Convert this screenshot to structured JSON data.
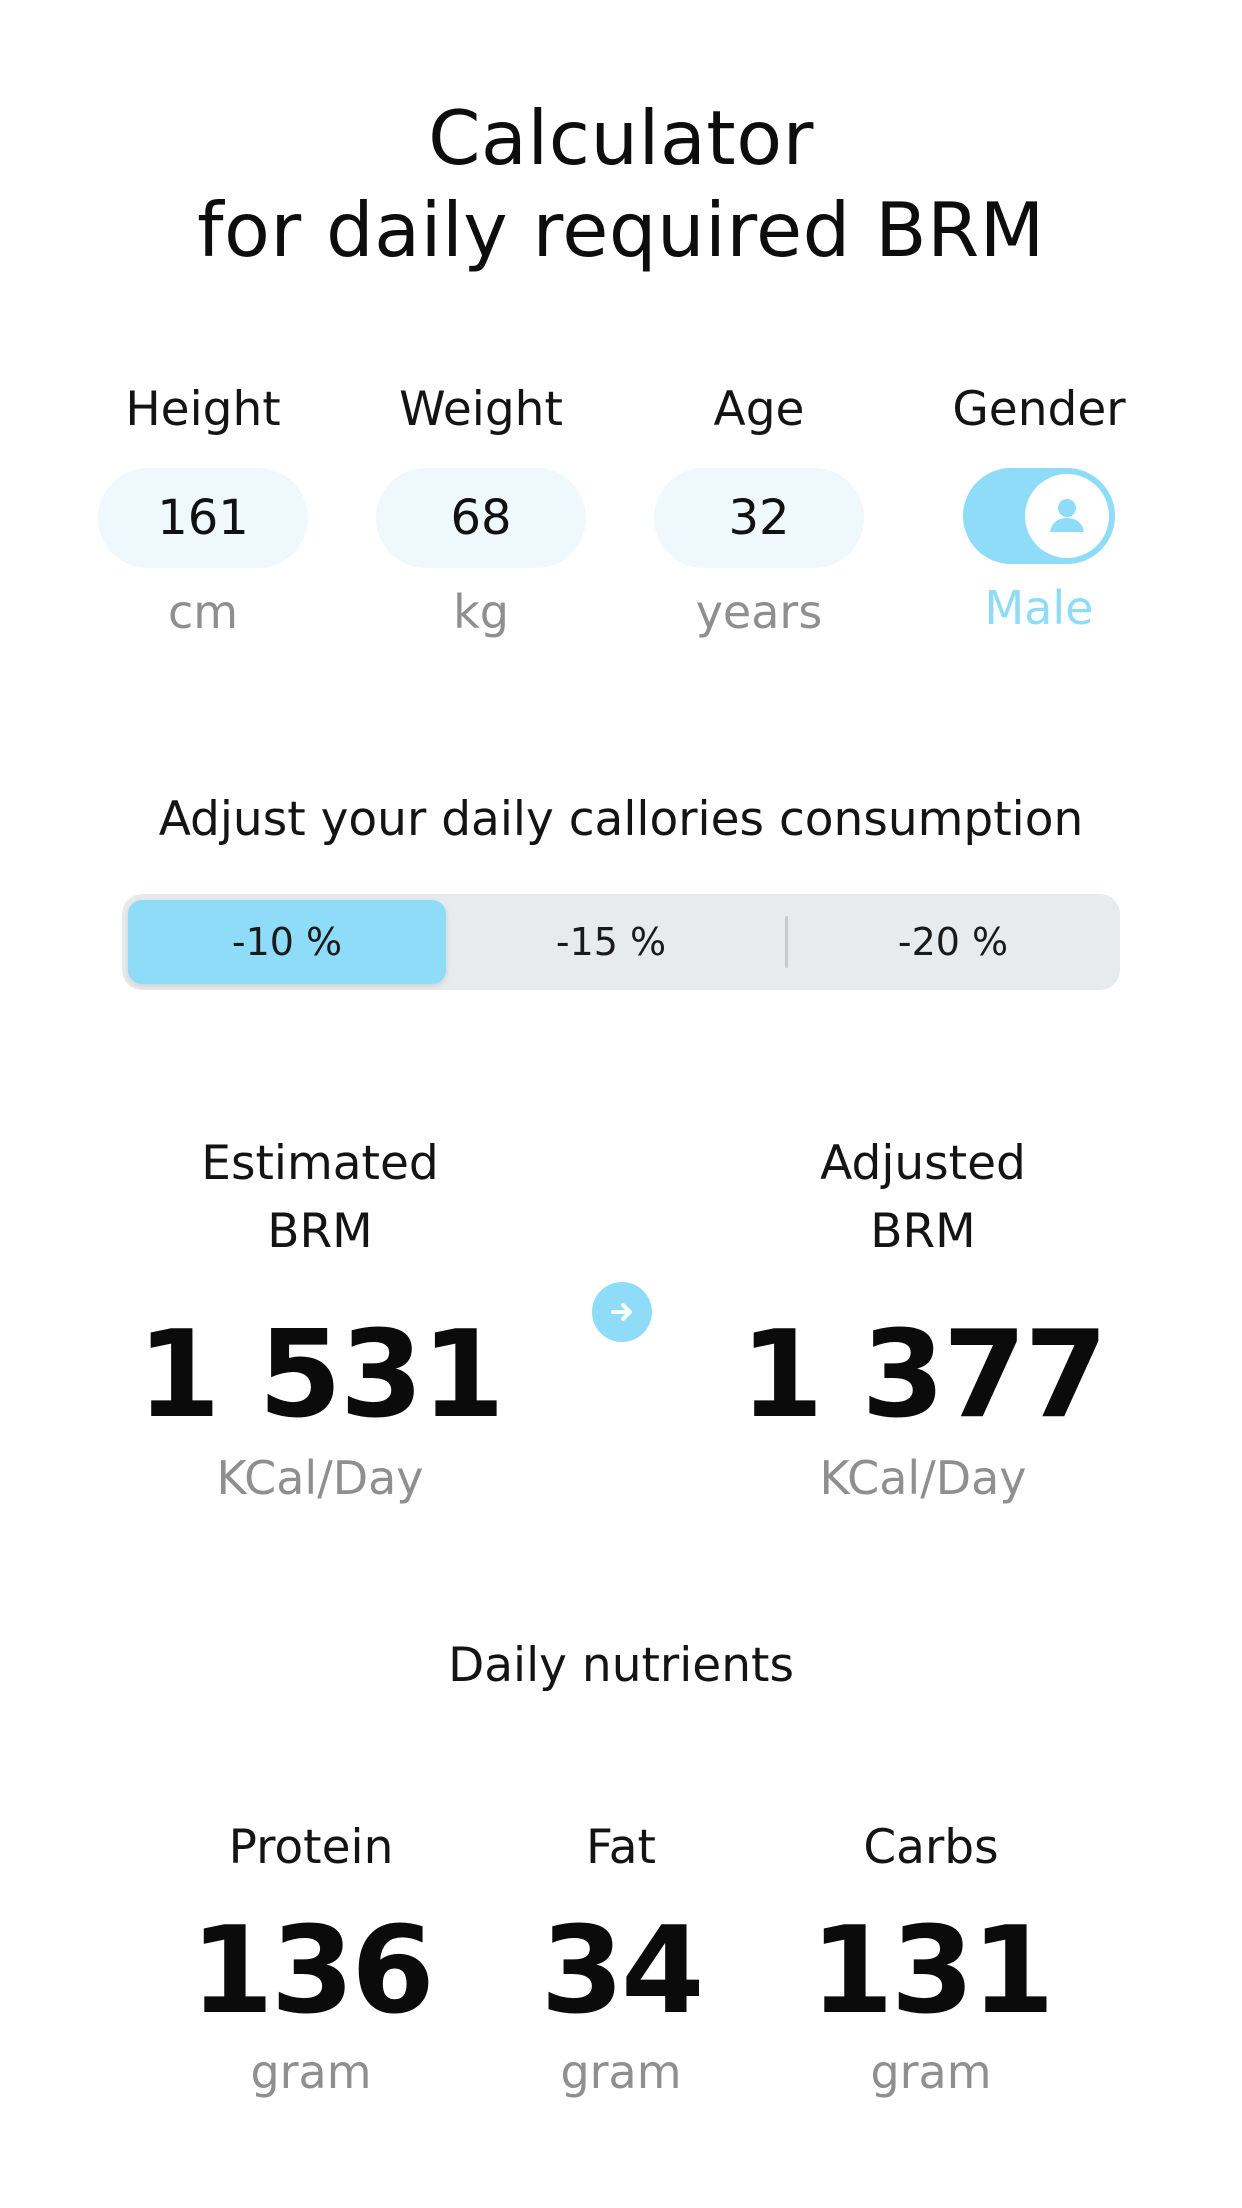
{
  "title": {
    "line1": "Calculator",
    "line2": "for daily required BRM"
  },
  "inputs": {
    "height": {
      "label": "Height",
      "value": "161",
      "unit": "cm"
    },
    "weight": {
      "label": "Weight",
      "value": "68",
      "unit": "kg"
    },
    "age": {
      "label": "Age",
      "value": "32",
      "unit": "years"
    },
    "gender": {
      "label": "Gender",
      "value": "Male",
      "toggle_on": true,
      "icon": "person-icon"
    }
  },
  "adjust": {
    "label": "Adjust your daily callories consumption",
    "options": [
      "-10 %",
      "-15 %",
      "-20 %"
    ],
    "selected": "-10 %"
  },
  "brm": {
    "estimated": {
      "label_line1": "Estimated",
      "label_line2": "BRM",
      "value": "1 531",
      "unit": "KCal/Day"
    },
    "adjusted": {
      "label_line1": "Adjusted",
      "label_line2": "BRM",
      "value": "1 377",
      "unit": "KCal/Day"
    },
    "arrow_icon": "arrow-right-icon"
  },
  "nutrients": {
    "title": "Daily nutrients",
    "items": [
      {
        "label": "Protein",
        "value": "136",
        "unit": "gram"
      },
      {
        "label": "Fat",
        "value": "34",
        "unit": "gram"
      },
      {
        "label": "Carbs",
        "value": "131",
        "unit": "gram"
      }
    ]
  },
  "colors": {
    "accent": "#8edcf8",
    "pill_bg": "#eef8fd",
    "segmented_bg": "#e8ebee",
    "muted_text": "#8f8f8f"
  }
}
